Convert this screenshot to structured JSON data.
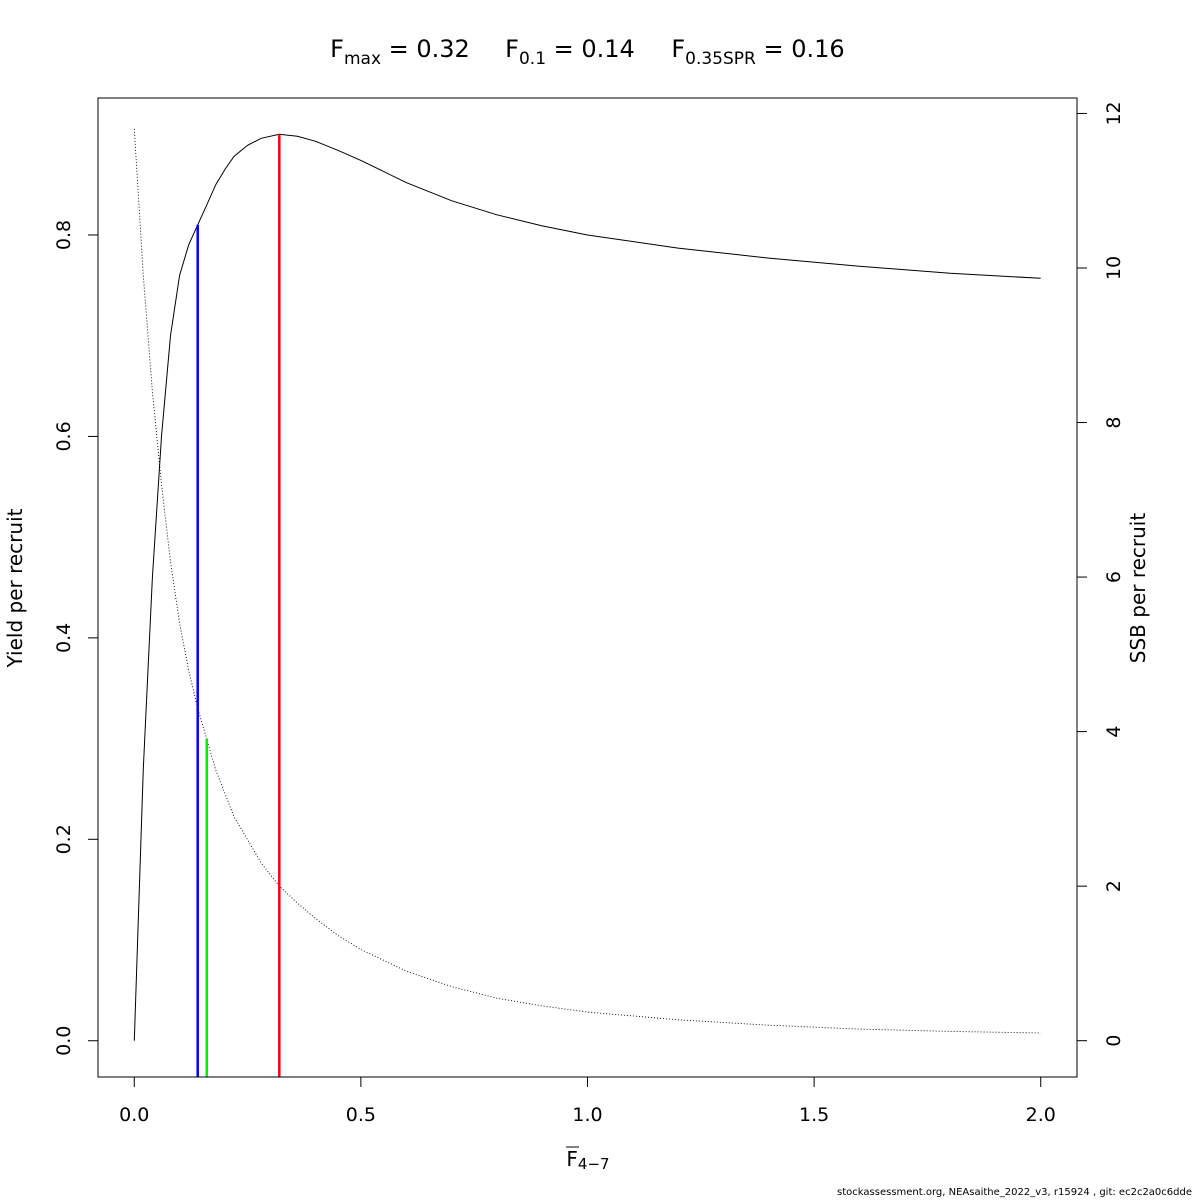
{
  "chart_data": {
    "type": "line",
    "title_parts": [
      {
        "base": "F",
        "sub": "max",
        "rest": " = 0.32"
      },
      {
        "base": "F",
        "sub": "0.1",
        "rest": " = 0.14"
      },
      {
        "base": "F",
        "sub": "0.35SPR",
        "rest": " = 0.16"
      }
    ],
    "xlabel": {
      "base": "F",
      "sub": "4−7"
    },
    "ylabel_left": "Yield per recruit",
    "ylabel_right": "SSB per recruit",
    "xlim": [
      -0.08,
      2.08
    ],
    "ylim_left": [
      -0.036,
      0.936
    ],
    "ylim_right": [
      -0.47,
      12.2
    ],
    "x_ticks": [
      "0.0",
      "0.5",
      "1.0",
      "1.5",
      "2.0"
    ],
    "y_ticks_left": [
      "0.0",
      "0.2",
      "0.4",
      "0.6",
      "0.8"
    ],
    "y_ticks_right": [
      "0",
      "2",
      "4",
      "6",
      "8",
      "10",
      "12"
    ],
    "series": [
      {
        "id": "ypr",
        "axis": "left",
        "style": "solid",
        "color": "#000000",
        "x": [
          0,
          0.02,
          0.04,
          0.06,
          0.08,
          0.1,
          0.12,
          0.14,
          0.16,
          0.18,
          0.2,
          0.22,
          0.25,
          0.28,
          0.32,
          0.36,
          0.4,
          0.45,
          0.5,
          0.6,
          0.7,
          0.8,
          0.9,
          1.0,
          1.2,
          1.4,
          1.6,
          1.8,
          2.0
        ],
        "y": [
          0.0,
          0.27,
          0.46,
          0.6,
          0.7,
          0.76,
          0.79,
          0.81,
          0.83,
          0.85,
          0.865,
          0.878,
          0.889,
          0.896,
          0.9,
          0.898,
          0.893,
          0.884,
          0.874,
          0.852,
          0.834,
          0.82,
          0.809,
          0.8,
          0.787,
          0.777,
          0.769,
          0.762,
          0.757
        ]
      },
      {
        "id": "spr",
        "axis": "right",
        "style": "dotted",
        "color": "#000000",
        "x": [
          0,
          0.02,
          0.04,
          0.06,
          0.08,
          0.1,
          0.12,
          0.14,
          0.16,
          0.18,
          0.2,
          0.22,
          0.25,
          0.28,
          0.32,
          0.36,
          0.4,
          0.45,
          0.5,
          0.6,
          0.7,
          0.8,
          0.9,
          1.0,
          1.2,
          1.4,
          1.6,
          1.8,
          2.0
        ],
        "y": [
          11.8,
          9.9,
          8.4,
          7.2,
          6.2,
          5.4,
          4.8,
          4.3,
          3.9,
          3.5,
          3.2,
          2.9,
          2.6,
          2.3,
          2.0,
          1.78,
          1.58,
          1.36,
          1.18,
          0.9,
          0.7,
          0.55,
          0.45,
          0.37,
          0.27,
          0.2,
          0.15,
          0.12,
          0.1
        ]
      }
    ],
    "reference_lines": [
      {
        "name": "F0.1",
        "x": 0.14,
        "y_top": 0.81,
        "color": "#0000ff"
      },
      {
        "name": "F0.35SPR",
        "x": 0.16,
        "y_top": 0.3,
        "color": "#00ee00"
      },
      {
        "name": "Fmax",
        "x": 0.32,
        "y_top": 0.9,
        "color": "#ff0000"
      }
    ]
  },
  "footer": "stockassessment.org, NEAsaithe_2022_v3, r15924 , git: ec2c2a0c6dde"
}
